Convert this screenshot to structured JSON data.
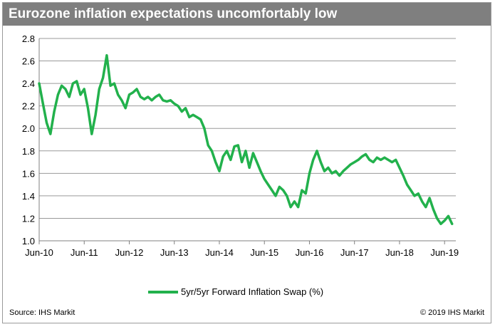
{
  "title": "Eurozone inflation expectations uncomfortably low",
  "legend": {
    "label": "5yr/5yr Forward Inflation Swap (%)",
    "placement": "bottom-center"
  },
  "footer": {
    "source": "Source: IHS Markit",
    "copyright": "© 2019 IHS Markit"
  },
  "colors": {
    "line": "#22b14c",
    "title_bar": "#7f7f7f",
    "grid": "#9a9a9a"
  },
  "chart_data": {
    "type": "line",
    "title": "Eurozone inflation expectations uncomfortably low",
    "xlabel": "",
    "ylabel": "",
    "grid": true,
    "ylim": [
      1.0,
      2.8
    ],
    "y_ticks": [
      "1.0",
      "1.2",
      "1.4",
      "1.6",
      "1.8",
      "2.0",
      "2.2",
      "2.4",
      "2.6",
      "2.8"
    ],
    "xlim": [
      "2010-06",
      "2019-09"
    ],
    "x_ticks": [
      "Jun-10",
      "Jun-11",
      "Jun-12",
      "Jun-13",
      "Jun-14",
      "Jun-15",
      "Jun-16",
      "Jun-17",
      "Jun-18",
      "Jun-19"
    ],
    "series": [
      {
        "name": "5yr/5yr Forward Inflation Swap (%)",
        "x": [
          "2010-06",
          "2010-07",
          "2010-08",
          "2010-09",
          "2010-10",
          "2010-11",
          "2010-12",
          "2011-01",
          "2011-02",
          "2011-03",
          "2011-04",
          "2011-05",
          "2011-06",
          "2011-07",
          "2011-08",
          "2011-09",
          "2011-10",
          "2011-11",
          "2011-12",
          "2012-01",
          "2012-02",
          "2012-03",
          "2012-04",
          "2012-05",
          "2012-06",
          "2012-07",
          "2012-08",
          "2012-09",
          "2012-10",
          "2012-11",
          "2012-12",
          "2013-01",
          "2013-02",
          "2013-03",
          "2013-04",
          "2013-05",
          "2013-06",
          "2013-07",
          "2013-08",
          "2013-09",
          "2013-10",
          "2013-11",
          "2013-12",
          "2014-01",
          "2014-02",
          "2014-03",
          "2014-04",
          "2014-05",
          "2014-06",
          "2014-07",
          "2014-08",
          "2014-09",
          "2014-10",
          "2014-11",
          "2014-12",
          "2015-01",
          "2015-02",
          "2015-03",
          "2015-04",
          "2015-05",
          "2015-06",
          "2015-07",
          "2015-08",
          "2015-09",
          "2015-10",
          "2015-11",
          "2015-12",
          "2016-01",
          "2016-02",
          "2016-03",
          "2016-04",
          "2016-05",
          "2016-06",
          "2016-07",
          "2016-08",
          "2016-09",
          "2016-10",
          "2016-11",
          "2016-12",
          "2017-01",
          "2017-02",
          "2017-03",
          "2017-04",
          "2017-05",
          "2017-06",
          "2017-07",
          "2017-08",
          "2017-09",
          "2017-10",
          "2017-11",
          "2017-12",
          "2018-01",
          "2018-02",
          "2018-03",
          "2018-04",
          "2018-05",
          "2018-06",
          "2018-07",
          "2018-08",
          "2018-09",
          "2018-10",
          "2018-11",
          "2018-12",
          "2019-01",
          "2019-02",
          "2019-03",
          "2019-04",
          "2019-05",
          "2019-06",
          "2019-07",
          "2019-08"
        ],
        "values": [
          2.4,
          2.22,
          2.05,
          1.95,
          2.15,
          2.3,
          2.38,
          2.35,
          2.28,
          2.4,
          2.42,
          2.3,
          2.35,
          2.18,
          1.95,
          2.12,
          2.35,
          2.45,
          2.65,
          2.38,
          2.4,
          2.3,
          2.25,
          2.18,
          2.3,
          2.32,
          2.35,
          2.28,
          2.26,
          2.28,
          2.25,
          2.28,
          2.3,
          2.25,
          2.24,
          2.25,
          2.22,
          2.2,
          2.15,
          2.18,
          2.1,
          2.12,
          2.1,
          2.08,
          2.0,
          1.85,
          1.8,
          1.7,
          1.62,
          1.75,
          1.8,
          1.72,
          1.84,
          1.85,
          1.7,
          1.8,
          1.65,
          1.78,
          1.7,
          1.62,
          1.55,
          1.5,
          1.45,
          1.4,
          1.48,
          1.45,
          1.4,
          1.3,
          1.35,
          1.3,
          1.45,
          1.42,
          1.6,
          1.72,
          1.8,
          1.7,
          1.62,
          1.65,
          1.6,
          1.62,
          1.58,
          1.62,
          1.65,
          1.68,
          1.7,
          1.72,
          1.75,
          1.77,
          1.72,
          1.7,
          1.74,
          1.72,
          1.74,
          1.72,
          1.7,
          1.72,
          1.65,
          1.58,
          1.5,
          1.45,
          1.4,
          1.42,
          1.35,
          1.3,
          1.38,
          1.28,
          1.2,
          1.15,
          1.18,
          1.22,
          1.15
        ]
      }
    ]
  }
}
